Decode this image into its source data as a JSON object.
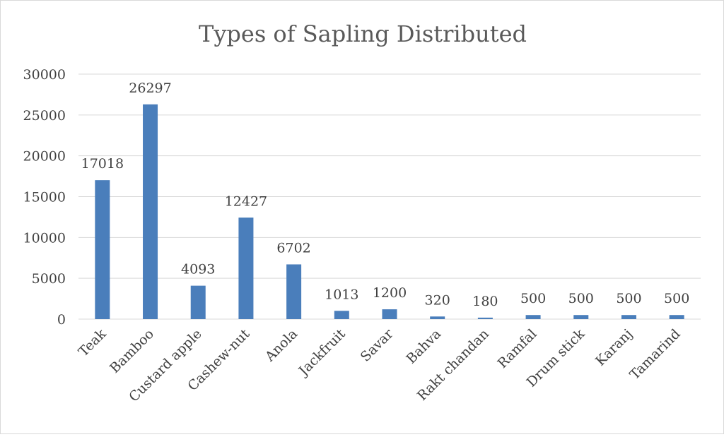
{
  "chart_data": {
    "type": "bar",
    "title": "Types of Sapling Distributed",
    "xlabel": "",
    "ylabel": "",
    "categories": [
      "Teak",
      "Bamboo",
      "Custard apple",
      "Cashew-nut",
      "Anola",
      "Jackfruit",
      "Savar",
      "Bahva",
      "Rakt chandan",
      "Ramfal",
      "Drum stick",
      "Karanj",
      "Tamarind"
    ],
    "values": [
      17018,
      26297,
      4093,
      12427,
      6702,
      1013,
      1200,
      320,
      180,
      500,
      500,
      500,
      500
    ],
    "ylim": [
      0,
      30000
    ],
    "yticks": [
      "0",
      "5000",
      "10000",
      "15000",
      "20000",
      "25000",
      "30000"
    ],
    "grid": true,
    "legend": "none",
    "bar_color": "#4a7ebb",
    "gridline_color": "#d9d9d9"
  }
}
